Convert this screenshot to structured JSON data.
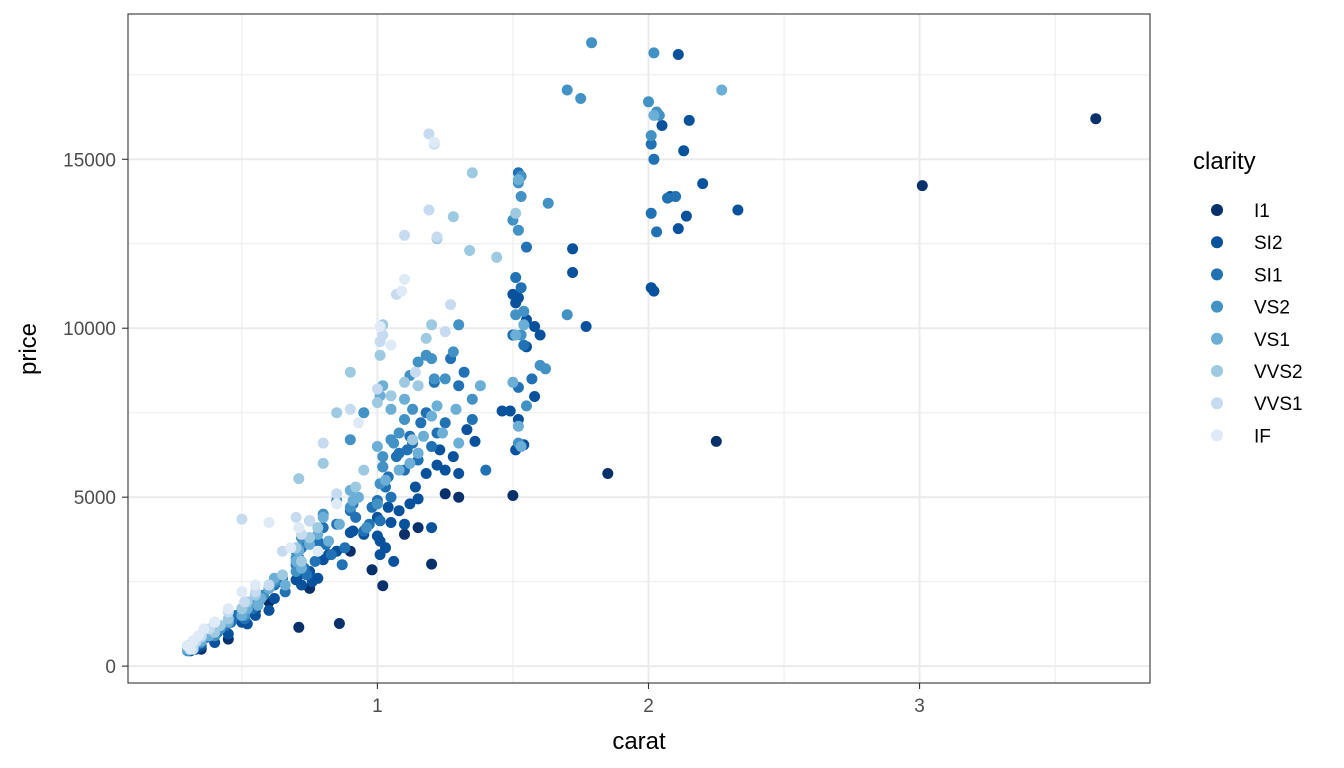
{
  "chart_data": {
    "type": "scatter",
    "xlabel": "carat",
    "ylabel": "price",
    "xlim": [
      0.08,
      3.85
    ],
    "ylim": [
      -500,
      19300
    ],
    "x_ticks": [
      1,
      2,
      3
    ],
    "x_tick_labels": [
      "1",
      "2",
      "3"
    ],
    "y_ticks": [
      0,
      5000,
      10000,
      15000
    ],
    "y_tick_labels": [
      "0",
      "5000",
      "10000",
      "15000"
    ],
    "grid": true,
    "legend": {
      "title": "clarity",
      "position": "right",
      "entries": [
        "I1",
        "SI2",
        "SI1",
        "VS2",
        "VS1",
        "VVS2",
        "VVS1",
        "IF"
      ]
    },
    "colors": {
      "I1": "#08306b",
      "SI2": "#08519c",
      "SI1": "#2171b5",
      "VS2": "#4292c6",
      "VS1": "#6baed6",
      "VVS2": "#9ecae1",
      "VVS1": "#c6dbef",
      "IF": "#deebf7"
    },
    "series": [
      {
        "name": "I1",
        "x": [
          3.65,
          3.01,
          2.25,
          1.85,
          0.86,
          0.71,
          1.02,
          1.2,
          0.98,
          0.55,
          0.6,
          0.75,
          0.9,
          1.1,
          1.15,
          1.25,
          1.5,
          1.3,
          0.35,
          0.45
        ],
        "y": [
          16200,
          14220,
          6650,
          5700,
          1260,
          1150,
          2380,
          3020,
          2850,
          1650,
          1900,
          2300,
          3400,
          3900,
          4100,
          5100,
          5050,
          5000,
          500,
          800
        ]
      },
      {
        "name": "SI2",
        "x": [
          2.11,
          2.05,
          2.15,
          2.13,
          2.2,
          2.33,
          2.11,
          2.14,
          2.01,
          2.02,
          2.08,
          1.72,
          1.72,
          1.77,
          1.5,
          1.51,
          1.52,
          1.55,
          1.58,
          1.6,
          1.5,
          1.55,
          1.49,
          1.46,
          1.58,
          1.52,
          1.51,
          1.54,
          1.2,
          1.25,
          1.22,
          1.15,
          1.1,
          1.05,
          1.01,
          1.03,
          0.9,
          0.91,
          0.95,
          0.8,
          0.75,
          0.71,
          0.7,
          0.72,
          0.62,
          0.6,
          0.55,
          0.5,
          0.52,
          0.45,
          0.4,
          0.35,
          0.33,
          0.31,
          1.18,
          1.28,
          1.33,
          1.36,
          1.12,
          1.08,
          1.0,
          1.0,
          1.01,
          0.85,
          0.82,
          0.78,
          0.76,
          1.14,
          1.23,
          1.04,
          1.06,
          1.3
        ],
        "y": [
          18100,
          16000,
          16150,
          15250,
          14280,
          13500,
          12950,
          13320,
          11200,
          11100,
          13900,
          12350,
          11650,
          10050,
          11000,
          10750,
          10900,
          10250,
          10050,
          9800,
          9800,
          9450,
          7550,
          7550,
          7980,
          7300,
          6400,
          6550,
          4100,
          5800,
          5950,
          4950,
          4200,
          4250,
          3700,
          3500,
          3950,
          4000,
          3900,
          3150,
          2800,
          2700,
          2550,
          2400,
          2000,
          1650,
          1500,
          1300,
          1250,
          950,
          700,
          600,
          500,
          450,
          5700,
          6200,
          7000,
          6650,
          4800,
          4600,
          4400,
          3850,
          3300,
          3400,
          3300,
          2600,
          2500,
          5300,
          6400,
          4700,
          3100,
          5700
        ]
      },
      {
        "name": "SI1",
        "x": [
          2.01,
          2.07,
          2.1,
          2.01,
          2.03,
          2.02,
          1.52,
          1.55,
          1.53,
          1.51,
          1.5,
          1.54,
          1.57,
          1.52,
          1.3,
          1.35,
          1.25,
          1.22,
          1.2,
          1.15,
          1.1,
          1.12,
          1.08,
          1.05,
          1.01,
          1.02,
          1.0,
          0.91,
          0.9,
          0.92,
          0.95,
          0.85,
          0.8,
          0.81,
          0.78,
          0.75,
          0.72,
          0.7,
          0.71,
          0.7,
          0.65,
          0.62,
          0.6,
          0.58,
          0.55,
          0.52,
          0.5,
          0.51,
          0.46,
          0.42,
          0.41,
          0.4,
          0.35,
          0.33,
          0.3,
          0.32,
          0.31,
          1.18,
          1.21,
          1.27,
          1.32,
          1.4,
          1.16,
          1.13,
          1.11,
          1.07,
          1.03,
          1.04,
          0.98,
          0.97,
          0.88,
          0.87,
          0.83,
          0.77,
          0.74,
          0.73,
          0.66,
          0.64,
          0.56,
          0.54,
          0.48,
          0.44,
          0.38,
          0.37,
          0.34
        ],
        "y": [
          15450,
          13850,
          13900,
          13400,
          12850,
          15000,
          14600,
          12400,
          11200,
          11500,
          9800,
          9500,
          8500,
          8250,
          8300,
          7300,
          7200,
          6900,
          6500,
          6100,
          5800,
          6800,
          6300,
          5000,
          4300,
          5900,
          4900,
          4800,
          4600,
          4400,
          4000,
          4200,
          4100,
          3600,
          3700,
          3800,
          3500,
          3400,
          3200,
          3000,
          2600,
          2400,
          2300,
          2100,
          2000,
          1800,
          1600,
          1400,
          1300,
          1100,
          1000,
          900,
          800,
          700,
          600,
          550,
          500,
          7500,
          8400,
          9100,
          8700,
          5800,
          7200,
          6600,
          6400,
          6200,
          5300,
          5600,
          4700,
          4200,
          3500,
          3000,
          3300,
          3100,
          2700,
          2900,
          2200,
          2500,
          1900,
          1700,
          1500,
          1200,
          950,
          850,
          650
        ]
      },
      {
        "name": "VS2",
        "x": [
          1.79,
          1.7,
          1.75,
          2.02,
          2.03,
          2.04,
          2.01,
          2.0,
          1.52,
          1.53,
          1.5,
          1.52,
          1.54,
          1.51,
          1.63,
          1.53,
          1.6,
          1.55,
          1.52,
          1.3,
          1.35,
          1.25,
          1.2,
          1.15,
          1.12,
          1.1,
          1.05,
          1.02,
          1.01,
          1.0,
          0.9,
          0.95,
          0.9,
          0.85,
          0.8,
          0.75,
          0.72,
          0.71,
          0.7,
          0.7,
          0.62,
          0.6,
          0.58,
          0.55,
          0.5,
          0.51,
          0.45,
          0.42,
          0.4,
          0.35,
          0.32,
          0.3,
          1.18,
          1.21,
          1.13,
          1.08,
          1.06,
          1.28,
          1.02,
          0.96,
          1.7,
          1.62,
          1.53
        ],
        "y": [
          18450,
          17050,
          16800,
          18150,
          16400,
          16300,
          15700,
          16700,
          14300,
          13900,
          13200,
          12900,
          10500,
          10400,
          13700,
          14500,
          8900,
          7700,
          6600,
          10100,
          7900,
          8500,
          9100,
          9000,
          8600,
          7300,
          6700,
          6200,
          5400,
          4800,
          4700,
          7500,
          6700,
          4900,
          4500,
          4300,
          3800,
          3500,
          3200,
          2800,
          2500,
          2300,
          2100,
          1900,
          1700,
          1500,
          1300,
          1100,
          900,
          700,
          550,
          450,
          9200,
          8500,
          7600,
          6900,
          6600,
          9300,
          5900,
          4100,
          10400,
          8800,
          9800
        ]
      },
      {
        "name": "VS1",
        "x": [
          2.27,
          2.02,
          1.52,
          1.54,
          1.51,
          1.5,
          1.52,
          1.53,
          1.3,
          1.38,
          1.22,
          1.2,
          1.17,
          1.1,
          1.05,
          1.02,
          1.01,
          1.0,
          0.9,
          0.91,
          0.8,
          0.78,
          0.75,
          0.71,
          0.7,
          0.72,
          0.62,
          0.6,
          0.57,
          0.52,
          0.5,
          0.45,
          0.4,
          0.38,
          0.35,
          0.31,
          0.3,
          1.15,
          1.24,
          1.29,
          1.12,
          1.08,
          1.03,
          0.93,
          0.86,
          0.82,
          0.66,
          0.56
        ],
        "y": [
          17050,
          16300,
          14400,
          10100,
          9800,
          8400,
          7100,
          6500,
          6600,
          8300,
          7700,
          7400,
          6800,
          7900,
          7600,
          8300,
          8000,
          6500,
          5200,
          4900,
          4400,
          3900,
          3600,
          3400,
          3100,
          2900,
          2600,
          2300,
          2000,
          1700,
          1500,
          1300,
          1100,
          900,
          750,
          600,
          500,
          6300,
          6900,
          7600,
          6000,
          5800,
          5500,
          5000,
          4200,
          3700,
          2400,
          1800
        ]
      },
      {
        "name": "VVS2",
        "x": [
          1.35,
          1.22,
          1.2,
          1.18,
          1.15,
          1.1,
          1.02,
          1.01,
          1.0,
          0.9,
          0.85,
          0.8,
          0.78,
          0.75,
          0.71,
          0.7,
          0.72,
          0.65,
          0.6,
          0.55,
          0.52,
          0.5,
          0.45,
          0.42,
          0.4,
          0.35,
          0.33,
          0.31,
          1.05,
          0.95,
          0.92,
          1.28,
          1.44,
          1.34,
          1.51,
          1.13
        ],
        "y": [
          14600,
          12650,
          10100,
          9700,
          8300,
          8400,
          10100,
          9200,
          7800,
          8700,
          7500,
          6000,
          4100,
          3800,
          5550,
          3500,
          3100,
          2700,
          2400,
          2100,
          1900,
          1700,
          1400,
          1200,
          1000,
          850,
          700,
          600,
          8000,
          5800,
          5300,
          13300,
          12100,
          12300,
          13400,
          6700
        ]
      },
      {
        "name": "VVS1",
        "x": [
          1.19,
          1.21,
          1.19,
          1.22,
          1.1,
          1.07,
          1.02,
          1.01,
          1.0,
          0.9,
          0.8,
          0.75,
          0.7,
          0.72,
          0.65,
          0.6,
          0.55,
          0.5,
          0.51,
          0.45,
          0.4,
          0.38,
          0.35,
          0.33,
          0.3,
          0.32,
          1.27,
          1.25,
          1.14,
          0.85
        ],
        "y": [
          15750,
          15450,
          13500,
          12700,
          12750,
          11000,
          9800,
          9600,
          8200,
          7600,
          6600,
          4300,
          4400,
          3900,
          3400,
          2400,
          2200,
          4350,
          1900,
          1600,
          1300,
          1100,
          900,
          750,
          600,
          500,
          10700,
          9900,
          8700,
          5100
        ]
      },
      {
        "name": "IF",
        "x": [
          1.21,
          1.1,
          1.09,
          1.01,
          0.85,
          0.71,
          0.68,
          0.6,
          0.55,
          0.5,
          0.45,
          0.4,
          0.36,
          0.34,
          0.32,
          0.3,
          0.31,
          1.05,
          0.93,
          0.78
        ],
        "y": [
          15500,
          11450,
          11100,
          10050,
          4800,
          4100,
          3500,
          4250,
          2400,
          2200,
          1700,
          1300,
          1100,
          900,
          750,
          600,
          500,
          9500,
          7200,
          3400
        ]
      }
    ]
  }
}
